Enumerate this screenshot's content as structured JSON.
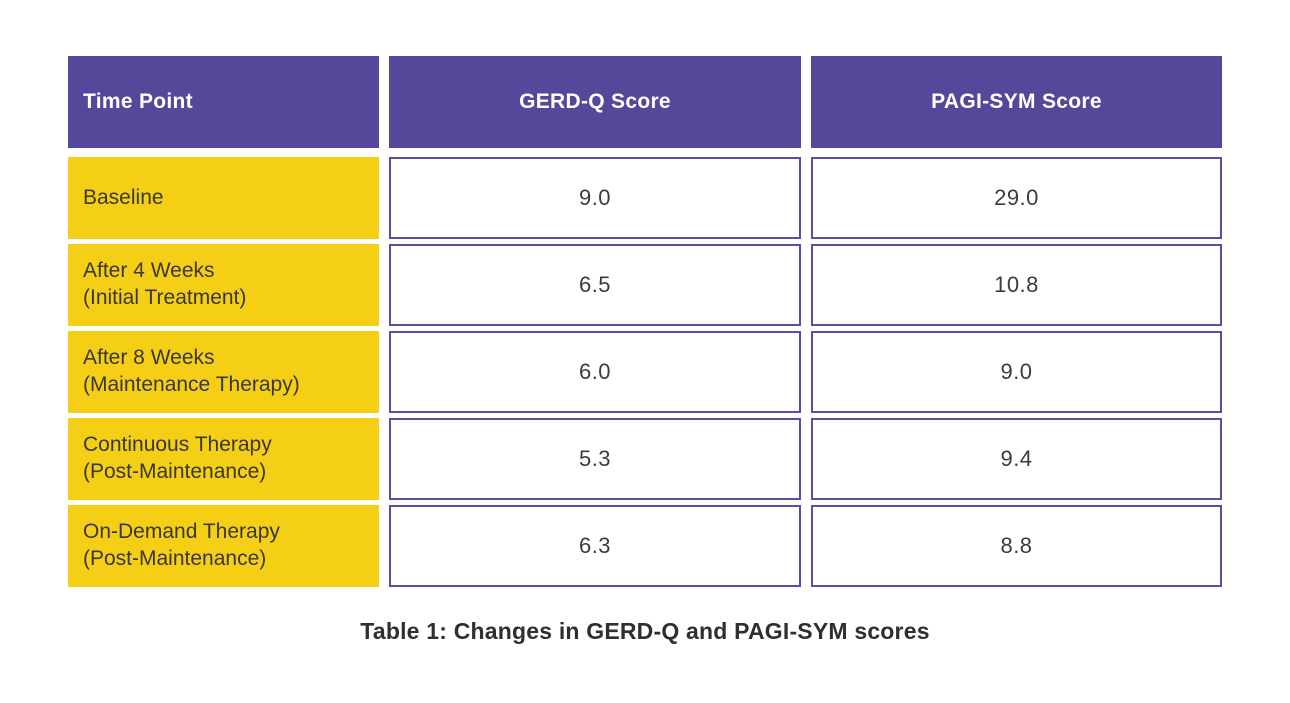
{
  "colors": {
    "header_bg": "#55489B",
    "row_label_bg": "#F5CF16",
    "cell_border": "#5A4E9F",
    "header_text": "#FFFFFF",
    "body_text": "#3C3C3B",
    "caption_text": "#2F2F2F"
  },
  "table": {
    "headers": [
      "Time Point",
      "GERD-Q Score",
      "PAGI-SYM Score"
    ],
    "rows": [
      {
        "label_line1": "Baseline",
        "label_line2": "",
        "gerdq": "9.0",
        "pagisym": "29.0"
      },
      {
        "label_line1": "After 4 Weeks",
        "label_line2": "(Initial Treatment)",
        "gerdq": "6.5",
        "pagisym": "10.8"
      },
      {
        "label_line1": "After 8 Weeks",
        "label_line2": "(Maintenance Therapy)",
        "gerdq": "6.0",
        "pagisym": "9.0"
      },
      {
        "label_line1": "Continuous Therapy",
        "label_line2": "(Post-Maintenance)",
        "gerdq": "5.3",
        "pagisym": "9.4"
      },
      {
        "label_line1": "On-Demand Therapy",
        "label_line2": "(Post-Maintenance)",
        "gerdq": "6.3",
        "pagisym": "8.8"
      }
    ],
    "caption": "Table 1: Changes in GERD-Q and PAGI-SYM scores"
  },
  "chart_data": {
    "type": "table",
    "title": "Table 1: Changes in GERD-Q and PAGI-SYM scores",
    "columns": [
      "Time Point",
      "GERD-Q Score",
      "PAGI-SYM Score"
    ],
    "rows": [
      [
        "Baseline",
        9.0,
        29.0
      ],
      [
        "After 4 Weeks (Initial Treatment)",
        6.5,
        10.8
      ],
      [
        "After 8 Weeks (Maintenance Therapy)",
        6.0,
        9.0
      ],
      [
        "Continuous Therapy (Post-Maintenance)",
        5.3,
        9.4
      ],
      [
        "On-Demand Therapy (Post-Maintenance)",
        6.3,
        8.8
      ]
    ]
  }
}
